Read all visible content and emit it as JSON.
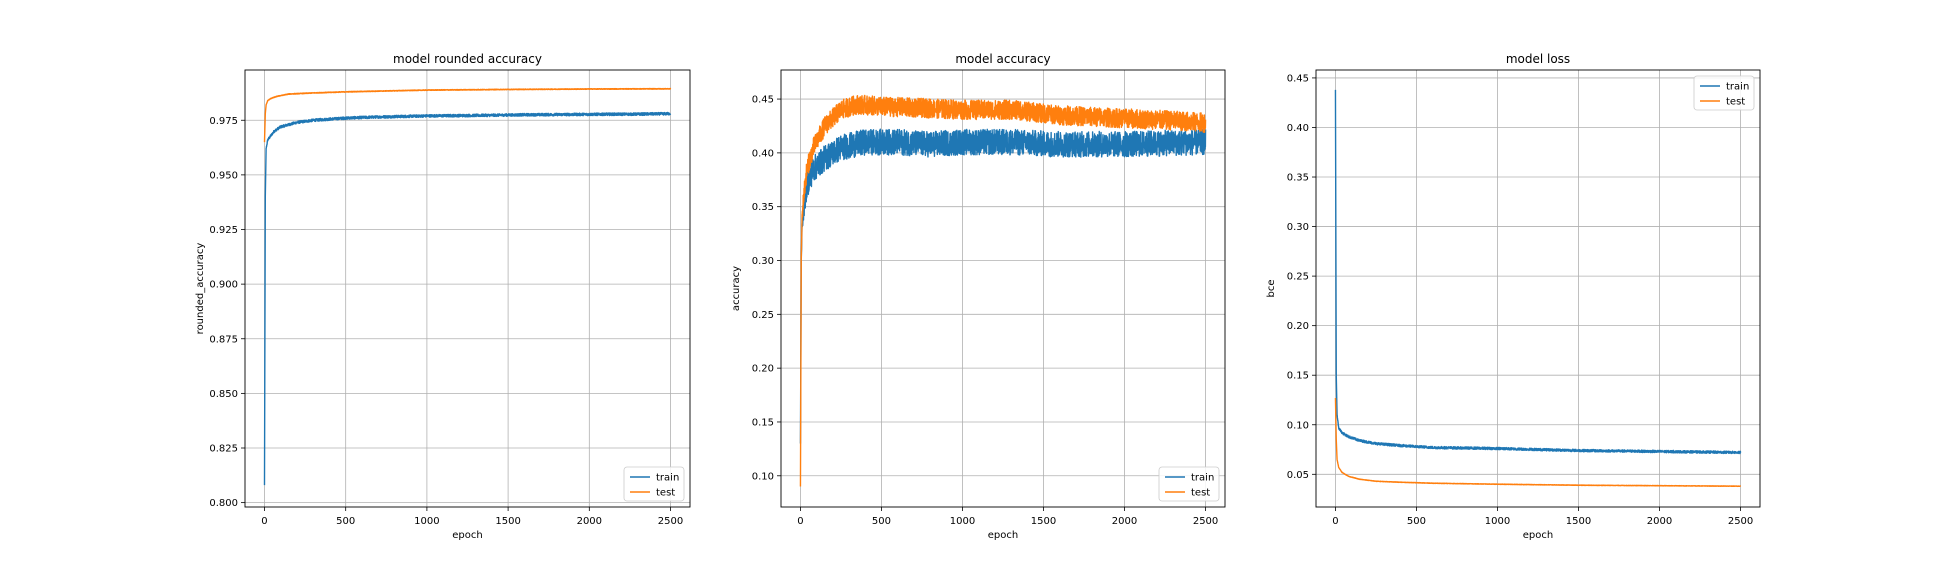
{
  "colors": {
    "train": "#1f77b4",
    "test": "#ff7f0e",
    "grid": "#b0b0b0"
  },
  "chart_data": [
    {
      "type": "line",
      "title": "model rounded accuracy",
      "xlabel": "epoch",
      "ylabel": "rounded_accuracy",
      "xlim": [
        -120,
        2620
      ],
      "ylim": [
        0.798,
        0.998
      ],
      "xticks": [
        0,
        500,
        1000,
        1500,
        2000,
        2500
      ],
      "yticks": [
        0.8,
        0.825,
        0.85,
        0.875,
        0.9,
        0.925,
        0.95,
        0.975
      ],
      "xtick_labels": [
        "0",
        "500",
        "1000",
        "1500",
        "2000",
        "2500"
      ],
      "ytick_labels": [
        "0.800",
        "0.825",
        "0.850",
        "0.875",
        "0.900",
        "0.925",
        "0.950",
        "0.975"
      ],
      "grid": true,
      "legend": "lower-right",
      "series": [
        {
          "name": "train",
          "color": "#1f77b4",
          "noise": 0.0006,
          "x": [
            0,
            5,
            10,
            20,
            40,
            60,
            100,
            150,
            200,
            300,
            400,
            500,
            700,
            1000,
            1300,
            1600,
            2000,
            2300,
            2500
          ],
          "y": [
            0.808,
            0.94,
            0.962,
            0.966,
            0.968,
            0.97,
            0.972,
            0.973,
            0.974,
            0.975,
            0.9755,
            0.976,
            0.9765,
            0.977,
            0.9772,
            0.9775,
            0.9777,
            0.9778,
            0.978
          ]
        },
        {
          "name": "test",
          "color": "#ff7f0e",
          "noise": 0.00015,
          "x": [
            0,
            5,
            10,
            20,
            40,
            80,
            150,
            300,
            500,
            800,
            1000,
            1500,
            2000,
            2500
          ],
          "y": [
            0.965,
            0.978,
            0.982,
            0.984,
            0.985,
            0.986,
            0.987,
            0.9875,
            0.988,
            0.9885,
            0.9888,
            0.9891,
            0.9893,
            0.9894
          ]
        }
      ]
    },
    {
      "type": "line",
      "title": "model accuracy",
      "xlabel": "epoch",
      "ylabel": "accuracy",
      "xlim": [
        -120,
        2620
      ],
      "ylim": [
        0.071,
        0.477
      ],
      "xticks": [
        0,
        500,
        1000,
        1500,
        2000,
        2500
      ],
      "yticks": [
        0.1,
        0.15,
        0.2,
        0.25,
        0.3,
        0.35,
        0.4,
        0.45
      ],
      "xtick_labels": [
        "0",
        "500",
        "1000",
        "1500",
        "2000",
        "2500"
      ],
      "ytick_labels": [
        "0.10",
        "0.15",
        "0.20",
        "0.25",
        "0.30",
        "0.35",
        "0.40",
        "0.45"
      ],
      "grid": true,
      "legend": "lower-right",
      "series": [
        {
          "name": "train",
          "color": "#1f77b4",
          "noise": 0.012,
          "x": [
            0,
            5,
            10,
            20,
            40,
            80,
            150,
            250,
            400,
            600,
            800,
            1000,
            1300,
            1600,
            2000,
            2500
          ],
          "y": [
            0.13,
            0.3,
            0.33,
            0.35,
            0.37,
            0.385,
            0.395,
            0.405,
            0.41,
            0.41,
            0.408,
            0.41,
            0.41,
            0.408,
            0.408,
            0.41
          ]
        },
        {
          "name": "test",
          "color": "#ff7f0e",
          "noise": 0.009,
          "x": [
            0,
            5,
            10,
            20,
            40,
            80,
            150,
            250,
            350,
            500,
            700,
            1000,
            1300,
            1600,
            2000,
            2300,
            2500
          ],
          "y": [
            0.09,
            0.3,
            0.34,
            0.36,
            0.385,
            0.405,
            0.425,
            0.44,
            0.445,
            0.443,
            0.442,
            0.44,
            0.44,
            0.435,
            0.432,
            0.43,
            0.428
          ]
        }
      ]
    },
    {
      "type": "line",
      "title": "model loss",
      "xlabel": "epoch",
      "ylabel": "bce",
      "xlim": [
        -120,
        2620
      ],
      "ylim": [
        0.017,
        0.458
      ],
      "xticks": [
        0,
        500,
        1000,
        1500,
        2000,
        2500
      ],
      "yticks": [
        0.05,
        0.1,
        0.15,
        0.2,
        0.25,
        0.3,
        0.35,
        0.4,
        0.45
      ],
      "xtick_labels": [
        "0",
        "500",
        "1000",
        "1500",
        "2000",
        "2500"
      ],
      "ytick_labels": [
        "0.05",
        "0.10",
        "0.15",
        "0.20",
        "0.25",
        "0.30",
        "0.35",
        "0.40",
        "0.45"
      ],
      "grid": true,
      "legend": "upper-right",
      "series": [
        {
          "name": "train",
          "color": "#1f77b4",
          "noise": 0.0012,
          "x": [
            0,
            5,
            10,
            20,
            40,
            80,
            150,
            250,
            400,
            600,
            1000,
            1500,
            2000,
            2500
          ],
          "y": [
            0.438,
            0.15,
            0.11,
            0.097,
            0.092,
            0.088,
            0.084,
            0.081,
            0.079,
            0.077,
            0.076,
            0.074,
            0.073,
            0.072
          ]
        },
        {
          "name": "test",
          "color": "#ff7f0e",
          "noise": 0.0002,
          "x": [
            0,
            5,
            10,
            20,
            40,
            80,
            150,
            250,
            400,
            600,
            1000,
            1500,
            2000,
            2500
          ],
          "y": [
            0.127,
            0.085,
            0.065,
            0.057,
            0.052,
            0.048,
            0.045,
            0.043,
            0.042,
            0.041,
            0.04,
            0.039,
            0.0385,
            0.038
          ]
        }
      ]
    }
  ]
}
